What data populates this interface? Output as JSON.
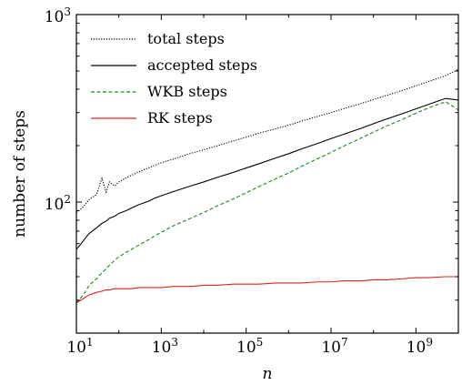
{
  "chart_data": {
    "type": "line",
    "xlabel": "n",
    "ylabel": "number of steps",
    "xscale": "log",
    "yscale": "log",
    "xlim": [
      10,
      10000000000
    ],
    "ylim": [
      20,
      1000
    ],
    "grid": false,
    "legend_position": "top-left",
    "x_ticks": [
      {
        "base": "10",
        "exp": "1"
      },
      {
        "base": "10",
        "exp": "3"
      },
      {
        "base": "10",
        "exp": "5"
      },
      {
        "base": "10",
        "exp": "7"
      },
      {
        "base": "10",
        "exp": "9"
      }
    ],
    "x_tick_values": [
      10,
      1000,
      100000,
      10000000,
      1000000000
    ],
    "y_ticks": [
      {
        "base": "10",
        "exp": "2"
      },
      {
        "base": "10",
        "exp": "3"
      }
    ],
    "y_tick_values": [
      100,
      1000
    ],
    "x": [
      10,
      13,
      16,
      20,
      30,
      40,
      50,
      60,
      80,
      100,
      150,
      200,
      300,
      500,
      700,
      1000,
      2000,
      5000,
      10000,
      20000,
      50000,
      100000,
      200000,
      500000,
      1000000,
      2000000,
      5000000,
      10000000,
      20000000,
      50000000,
      100000000,
      200000000,
      500000000,
      1000000000,
      2000000000,
      5000000000,
      10000000000
    ],
    "series": [
      {
        "name": "total steps",
        "color": "#000000",
        "dash": "dotted",
        "values": [
          88,
          92,
          97,
          103,
          110,
          134,
          113,
          128,
          122,
          128,
          135,
          139,
          145,
          152,
          157,
          162,
          170,
          182,
          190,
          199,
          212,
          222,
          233,
          246,
          257,
          270,
          287,
          300,
          315,
          335,
          352,
          370,
          395,
          417,
          440,
          472,
          510
        ]
      },
      {
        "name": "accepted steps",
        "color": "#000000",
        "dash": "solid",
        "values": [
          56,
          60,
          64,
          68,
          73,
          77,
          79,
          82,
          84,
          87,
          90,
          93,
          97,
          101,
          105,
          108,
          114,
          122,
          128,
          135,
          144,
          152,
          160,
          172,
          181,
          192,
          206,
          218,
          230,
          247,
          262,
          277,
          297,
          314,
          332,
          357,
          350
        ]
      },
      {
        "name": "WKB steps",
        "color": "#1a8a1a",
        "dash": "dashed",
        "values": [
          29,
          31,
          33,
          36,
          39,
          42,
          44,
          46,
          49,
          51,
          54,
          56,
          59,
          63,
          66,
          69,
          75,
          82,
          88,
          95,
          104,
          112,
          121,
          133,
          143,
          155,
          171,
          184,
          199,
          219,
          236,
          254,
          277,
          298,
          318,
          343,
          310
        ]
      },
      {
        "name": "RK steps",
        "color": "#e8201a",
        "dash": "solid",
        "values": [
          29,
          30,
          31,
          32,
          33,
          33.5,
          34,
          34,
          34.5,
          34.5,
          34.5,
          34.5,
          35,
          35,
          35,
          35,
          35.5,
          35.5,
          36,
          36,
          36.5,
          36.5,
          36.5,
          37,
          37,
          37,
          37.5,
          37.5,
          38,
          38,
          38.5,
          38.5,
          39,
          39.5,
          39.5,
          40,
          40
        ]
      }
    ]
  }
}
